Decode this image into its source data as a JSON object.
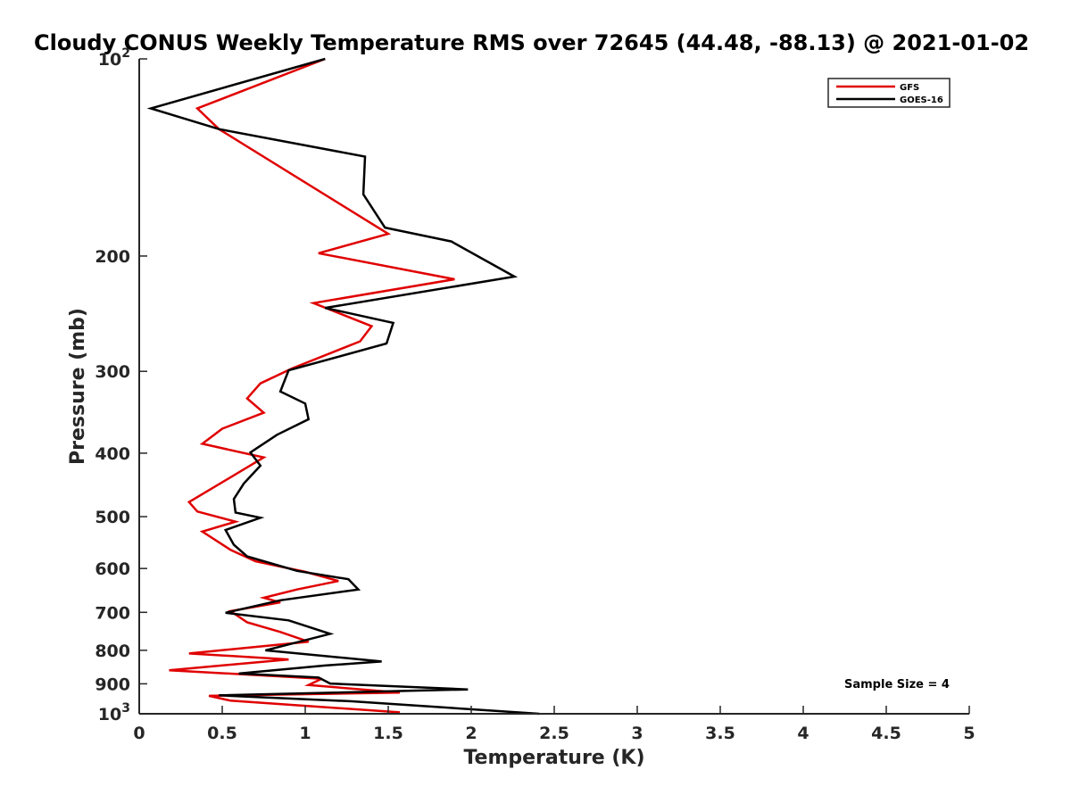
{
  "chart_data": {
    "type": "line",
    "title": "Cloudy CONUS Weekly Temperature RMS over 72645 (44.48, -88.13) @ 2021-01-02",
    "xlabel": "Temperature (K)",
    "ylabel": "Pressure (mb)",
    "xlim": [
      0,
      5
    ],
    "ylim": [
      100,
      1000
    ],
    "yscale": "log",
    "y_reversed": true,
    "grid": false,
    "legend_position": "top-right",
    "x_ticks": [
      0,
      0.5,
      1,
      1.5,
      2,
      2.5,
      3,
      3.5,
      4,
      4.5,
      5
    ],
    "x_tick_labels": [
      "0",
      "0.5",
      "1",
      "1.5",
      "2",
      "2.5",
      "3",
      "3.5",
      "4",
      "4.5",
      "5"
    ],
    "y_ticks": [
      100,
      200,
      300,
      400,
      500,
      600,
      700,
      800,
      900,
      1000
    ],
    "y_tick_labels": [
      {
        "base": "10",
        "exp": "2"
      },
      {
        "base": "200",
        "exp": ""
      },
      {
        "base": "300",
        "exp": ""
      },
      {
        "base": "400",
        "exp": ""
      },
      {
        "base": "500",
        "exp": ""
      },
      {
        "base": "600",
        "exp": ""
      },
      {
        "base": "700",
        "exp": ""
      },
      {
        "base": "800",
        "exp": ""
      },
      {
        "base": "900",
        "exp": ""
      },
      {
        "base": "10",
        "exp": "3"
      }
    ],
    "annotation": "Sample Size = 4",
    "series": [
      {
        "name": "GFS",
        "color": "#e00000",
        "points": [
          [
            1.12,
            100
          ],
          [
            0.35,
            119
          ],
          [
            0.48,
            128
          ],
          [
            1.5,
            185
          ],
          [
            1.08,
            198
          ],
          [
            1.9,
            217
          ],
          [
            1.05,
            236
          ],
          [
            1.4,
            256
          ],
          [
            1.33,
            270
          ],
          [
            0.92,
            297
          ],
          [
            0.73,
            313
          ],
          [
            0.65,
            330
          ],
          [
            0.75,
            347
          ],
          [
            0.5,
            367
          ],
          [
            0.38,
            387
          ],
          [
            0.75,
            406
          ],
          [
            0.52,
            440
          ],
          [
            0.3,
            475
          ],
          [
            0.35,
            491
          ],
          [
            0.58,
            509
          ],
          [
            0.38,
            527
          ],
          [
            0.55,
            562
          ],
          [
            0.7,
            585
          ],
          [
            1.0,
            607
          ],
          [
            1.2,
            627
          ],
          [
            0.95,
            646
          ],
          [
            0.75,
            665
          ],
          [
            0.85,
            676
          ],
          [
            0.55,
            697
          ],
          [
            0.65,
            725
          ],
          [
            0.85,
            750
          ],
          [
            1.02,
            776
          ],
          [
            0.3,
            809
          ],
          [
            0.9,
            826
          ],
          [
            0.18,
            858
          ],
          [
            1.1,
            884
          ],
          [
            1.02,
            904
          ],
          [
            1.57,
            928
          ],
          [
            0.42,
            939
          ],
          [
            0.55,
            955
          ],
          [
            1.57,
            995
          ]
        ]
      },
      {
        "name": "GOES-16",
        "color": "#000000",
        "points": [
          [
            1.12,
            100
          ],
          [
            0.07,
            119
          ],
          [
            0.48,
            128
          ],
          [
            1.36,
            141
          ],
          [
            1.35,
            161
          ],
          [
            1.48,
            181
          ],
          [
            1.88,
            190
          ],
          [
            2.26,
            215
          ],
          [
            1.12,
            240
          ],
          [
            1.53,
            253
          ],
          [
            1.49,
            272
          ],
          [
            0.9,
            299
          ],
          [
            0.85,
            322
          ],
          [
            1.0,
            336
          ],
          [
            1.02,
            355
          ],
          [
            0.83,
            375
          ],
          [
            0.67,
            399
          ],
          [
            0.73,
            418
          ],
          [
            0.63,
            445
          ],
          [
            0.57,
            470
          ],
          [
            0.58,
            493
          ],
          [
            0.73,
            502
          ],
          [
            0.52,
            524
          ],
          [
            0.57,
            552
          ],
          [
            0.65,
            575
          ],
          [
            0.95,
            605
          ],
          [
            1.26,
            623
          ],
          [
            1.32,
            646
          ],
          [
            0.85,
            671
          ],
          [
            0.52,
            701
          ],
          [
            0.9,
            720
          ],
          [
            1.15,
            755
          ],
          [
            0.76,
            800
          ],
          [
            1.46,
            832
          ],
          [
            1.12,
            844
          ],
          [
            0.6,
            868
          ],
          [
            1.08,
            880
          ],
          [
            1.15,
            899
          ],
          [
            1.98,
            918
          ],
          [
            0.48,
            937
          ],
          [
            1.28,
            957
          ],
          [
            2.41,
            1000
          ]
        ]
      }
    ]
  }
}
